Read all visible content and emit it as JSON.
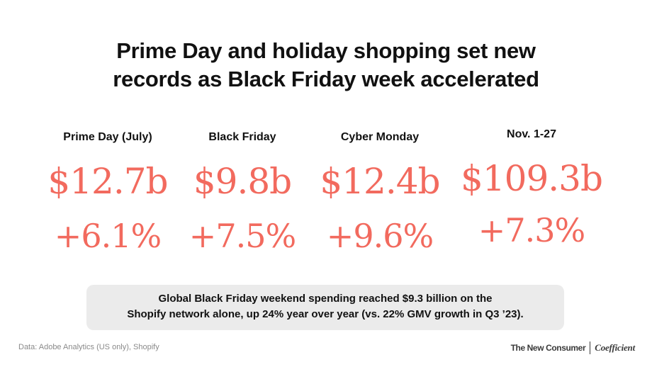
{
  "title": {
    "line1": "Prime Day and holiday shopping set new",
    "line2": "records as Black Friday week accelerated"
  },
  "stats": [
    {
      "label": "Prime Day (July)",
      "amount": "$12.7b",
      "change": "+6.1%"
    },
    {
      "label": "Black Friday",
      "amount": "$9.8b",
      "change": "+7.5%"
    },
    {
      "label": "Cyber Monday",
      "amount": "$12.4b",
      "change": "+9.6%"
    },
    {
      "label": "Nov. 1-27",
      "amount": "$109.3b",
      "change": "+7.3%"
    }
  ],
  "callout": {
    "line1": "Global Black Friday weekend spending reached $9.3 billion on the",
    "line2": "Shopify network alone, up 24% year over year (vs. 22% GMV growth in Q3 ’23)."
  },
  "source": "Data: Adobe Analytics (US only), Shopify",
  "brands": {
    "primary": "The New Consumer",
    "secondary": "Coefficient"
  },
  "colors": {
    "accent": "#f26a5e",
    "text": "#111111",
    "callout_bg": "#ebebeb",
    "muted": "#8a8a8a"
  }
}
